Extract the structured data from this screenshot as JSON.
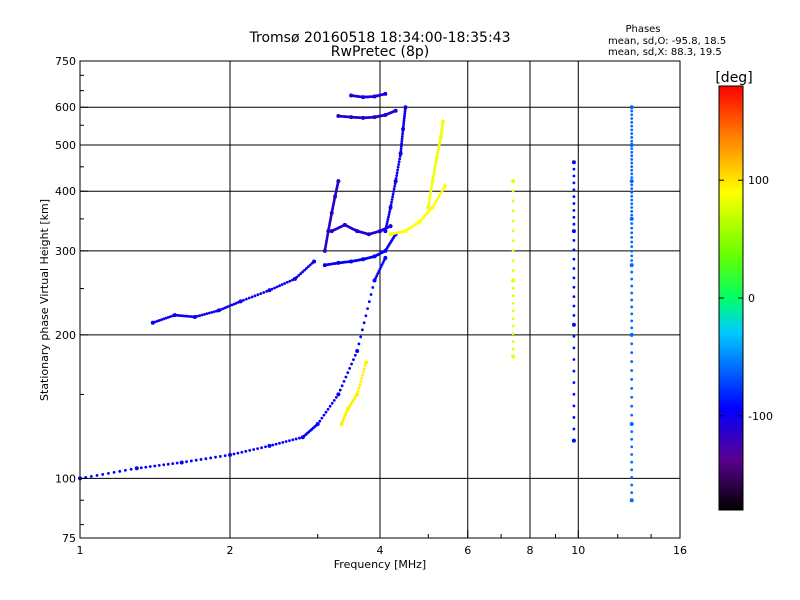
{
  "chart_data": {
    "type": "scatter",
    "title_line1": "Tromsø 20160518 18:34:00-18:35:43",
    "title_line2": "RwPretec (8p)",
    "phases": {
      "heading": "Phases",
      "line_o": "mean, sd,O: -95.8, 18.5",
      "line_x": "mean, sd,X:  88.3, 19.5"
    },
    "xlabel": "Frequency [MHz]",
    "ylabel": "Stationary phase Virtual Height [km]",
    "x_scale": "log",
    "y_scale": "log",
    "xlim": [
      1,
      16
    ],
    "ylim": [
      75,
      750
    ],
    "x_ticks": [
      1,
      2,
      4,
      6,
      8,
      10,
      16
    ],
    "x_tick_labels": [
      "1",
      "2",
      "4",
      "6",
      "8",
      "10",
      "16"
    ],
    "x_minor_ticks": [
      3,
      5,
      7,
      9,
      12,
      14
    ],
    "y_ticks": [
      75,
      100,
      200,
      300,
      400,
      500,
      600,
      750
    ],
    "y_tick_labels": [
      "75",
      "100",
      "200",
      "300",
      "400",
      "500",
      "600",
      "750"
    ],
    "y_minor_ticks": [
      80,
      90,
      150,
      250,
      350,
      450,
      550,
      650,
      700
    ],
    "grid": true,
    "colorbar": {
      "label": "[deg]",
      "range": [
        -180,
        180
      ],
      "ticks": [
        100,
        0,
        -100
      ],
      "tick_labels": [
        "100",
        "0",
        "-100"
      ]
    },
    "series": [
      {
        "segments": [
          {
            "x": [
              1.0,
              1.3,
              1.6,
              2.0,
              2.4,
              2.8,
              3.0,
              3.3,
              3.6,
              3.9,
              4.1
            ],
            "y": [
              100,
              105,
              108,
              112,
              117,
              122,
              130,
              150,
              185,
              260,
              290
            ],
            "phase": -95
          },
          {
            "x": [
              1.4,
              1.55,
              1.7,
              1.9,
              2.1,
              2.4,
              2.7,
              2.95
            ],
            "y": [
              212,
              220,
              218,
              225,
              235,
              248,
              262,
              285
            ],
            "phase": -100
          },
          {
            "x": [
              3.1,
              3.3,
              3.5,
              3.7,
              3.9,
              4.1,
              4.3
            ],
            "y": [
              280,
              283,
              285,
              288,
              292,
              300,
              325
            ],
            "phase": -95
          },
          {
            "x": [
              3.1,
              3.15,
              3.2,
              3.25,
              3.3
            ],
            "y": [
              300,
              330,
              360,
              390,
              420
            ],
            "phase": -115
          },
          {
            "x": [
              3.2,
              3.4,
              3.6,
              3.8,
              4.0,
              4.2
            ],
            "y": [
              330,
              340,
              330,
              325,
              330,
              338
            ],
            "phase": -110
          },
          {
            "x": [
              4.1,
              4.2,
              4.3,
              4.4,
              4.45,
              4.5
            ],
            "y": [
              330,
              370,
              420,
              480,
              540,
              600
            ],
            "phase": -100
          },
          {
            "x": [
              3.3,
              3.5,
              3.7,
              3.9,
              4.1,
              4.3
            ],
            "y": [
              575,
              572,
              570,
              572,
              578,
              590
            ],
            "phase": -110
          },
          {
            "x": [
              3.5,
              3.7,
              3.9,
              4.1
            ],
            "y": [
              635,
              630,
              632,
              640
            ],
            "phase": -105
          },
          {
            "x": [
              3.35,
              3.45,
              3.6,
              3.75
            ],
            "y": [
              130,
              140,
              150,
              175
            ],
            "phase": 95
          },
          {
            "x": [
              4.2,
              4.5,
              4.8,
              5.1,
              5.4
            ],
            "y": [
              325,
              330,
              345,
              370,
              410
            ],
            "phase": 90
          },
          {
            "x": [
              5.0,
              5.1,
              5.2,
              5.3,
              5.35
            ],
            "y": [
              370,
              420,
              470,
              520,
              560
            ],
            "phase": 85
          },
          {
            "x": [
              12.8,
              12.8,
              12.8,
              12.8,
              12.8,
              12.8,
              12.8,
              12.8
            ],
            "y": [
              90,
              130,
              200,
              280,
              350,
              420,
              500,
              600
            ],
            "phase": -60
          },
          {
            "x": [
              9.8,
              9.8,
              9.8,
              9.8
            ],
            "y": [
              120,
              210,
              330,
              460
            ],
            "phase": -90
          },
          {
            "x": [
              7.4,
              7.4,
              7.4
            ],
            "y": [
              180,
              260,
              420
            ],
            "phase": 80
          }
        ]
      }
    ]
  }
}
